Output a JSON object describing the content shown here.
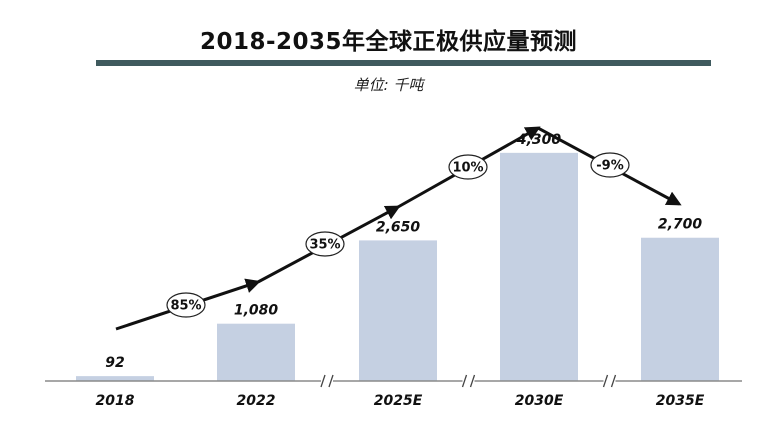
{
  "title": "2018-2035年全球正极供应量预测",
  "unit": "单位: 千吨",
  "colors": {
    "bar": "#c5d0e2",
    "rule": "#3f5a5e",
    "arrow": "#111111"
  },
  "chart_data": {
    "type": "bar",
    "title": "2018-2035年全球正极供应量预测",
    "unit": "单位: 千吨",
    "categories": [
      "2018",
      "2022",
      "2025E",
      "2030E",
      "2035E"
    ],
    "values": [
      92,
      1080,
      2650,
      4300,
      2700
    ],
    "value_labels": [
      "92",
      "1,080",
      "2,650",
      "4,300",
      "2,700"
    ],
    "ylim": [
      0,
      4900
    ],
    "grid": false,
    "axis_breaks_after": [
      "2022",
      "2025E",
      "2030E"
    ],
    "growth_rates": [
      {
        "from": "2018",
        "to": "2022",
        "label": "85%"
      },
      {
        "from": "2022",
        "to": "2025E",
        "label": "35%"
      },
      {
        "from": "2025E",
        "to": "2030E",
        "label": "10%"
      },
      {
        "from": "2030E",
        "to": "2035E",
        "label": "-9%"
      }
    ]
  }
}
